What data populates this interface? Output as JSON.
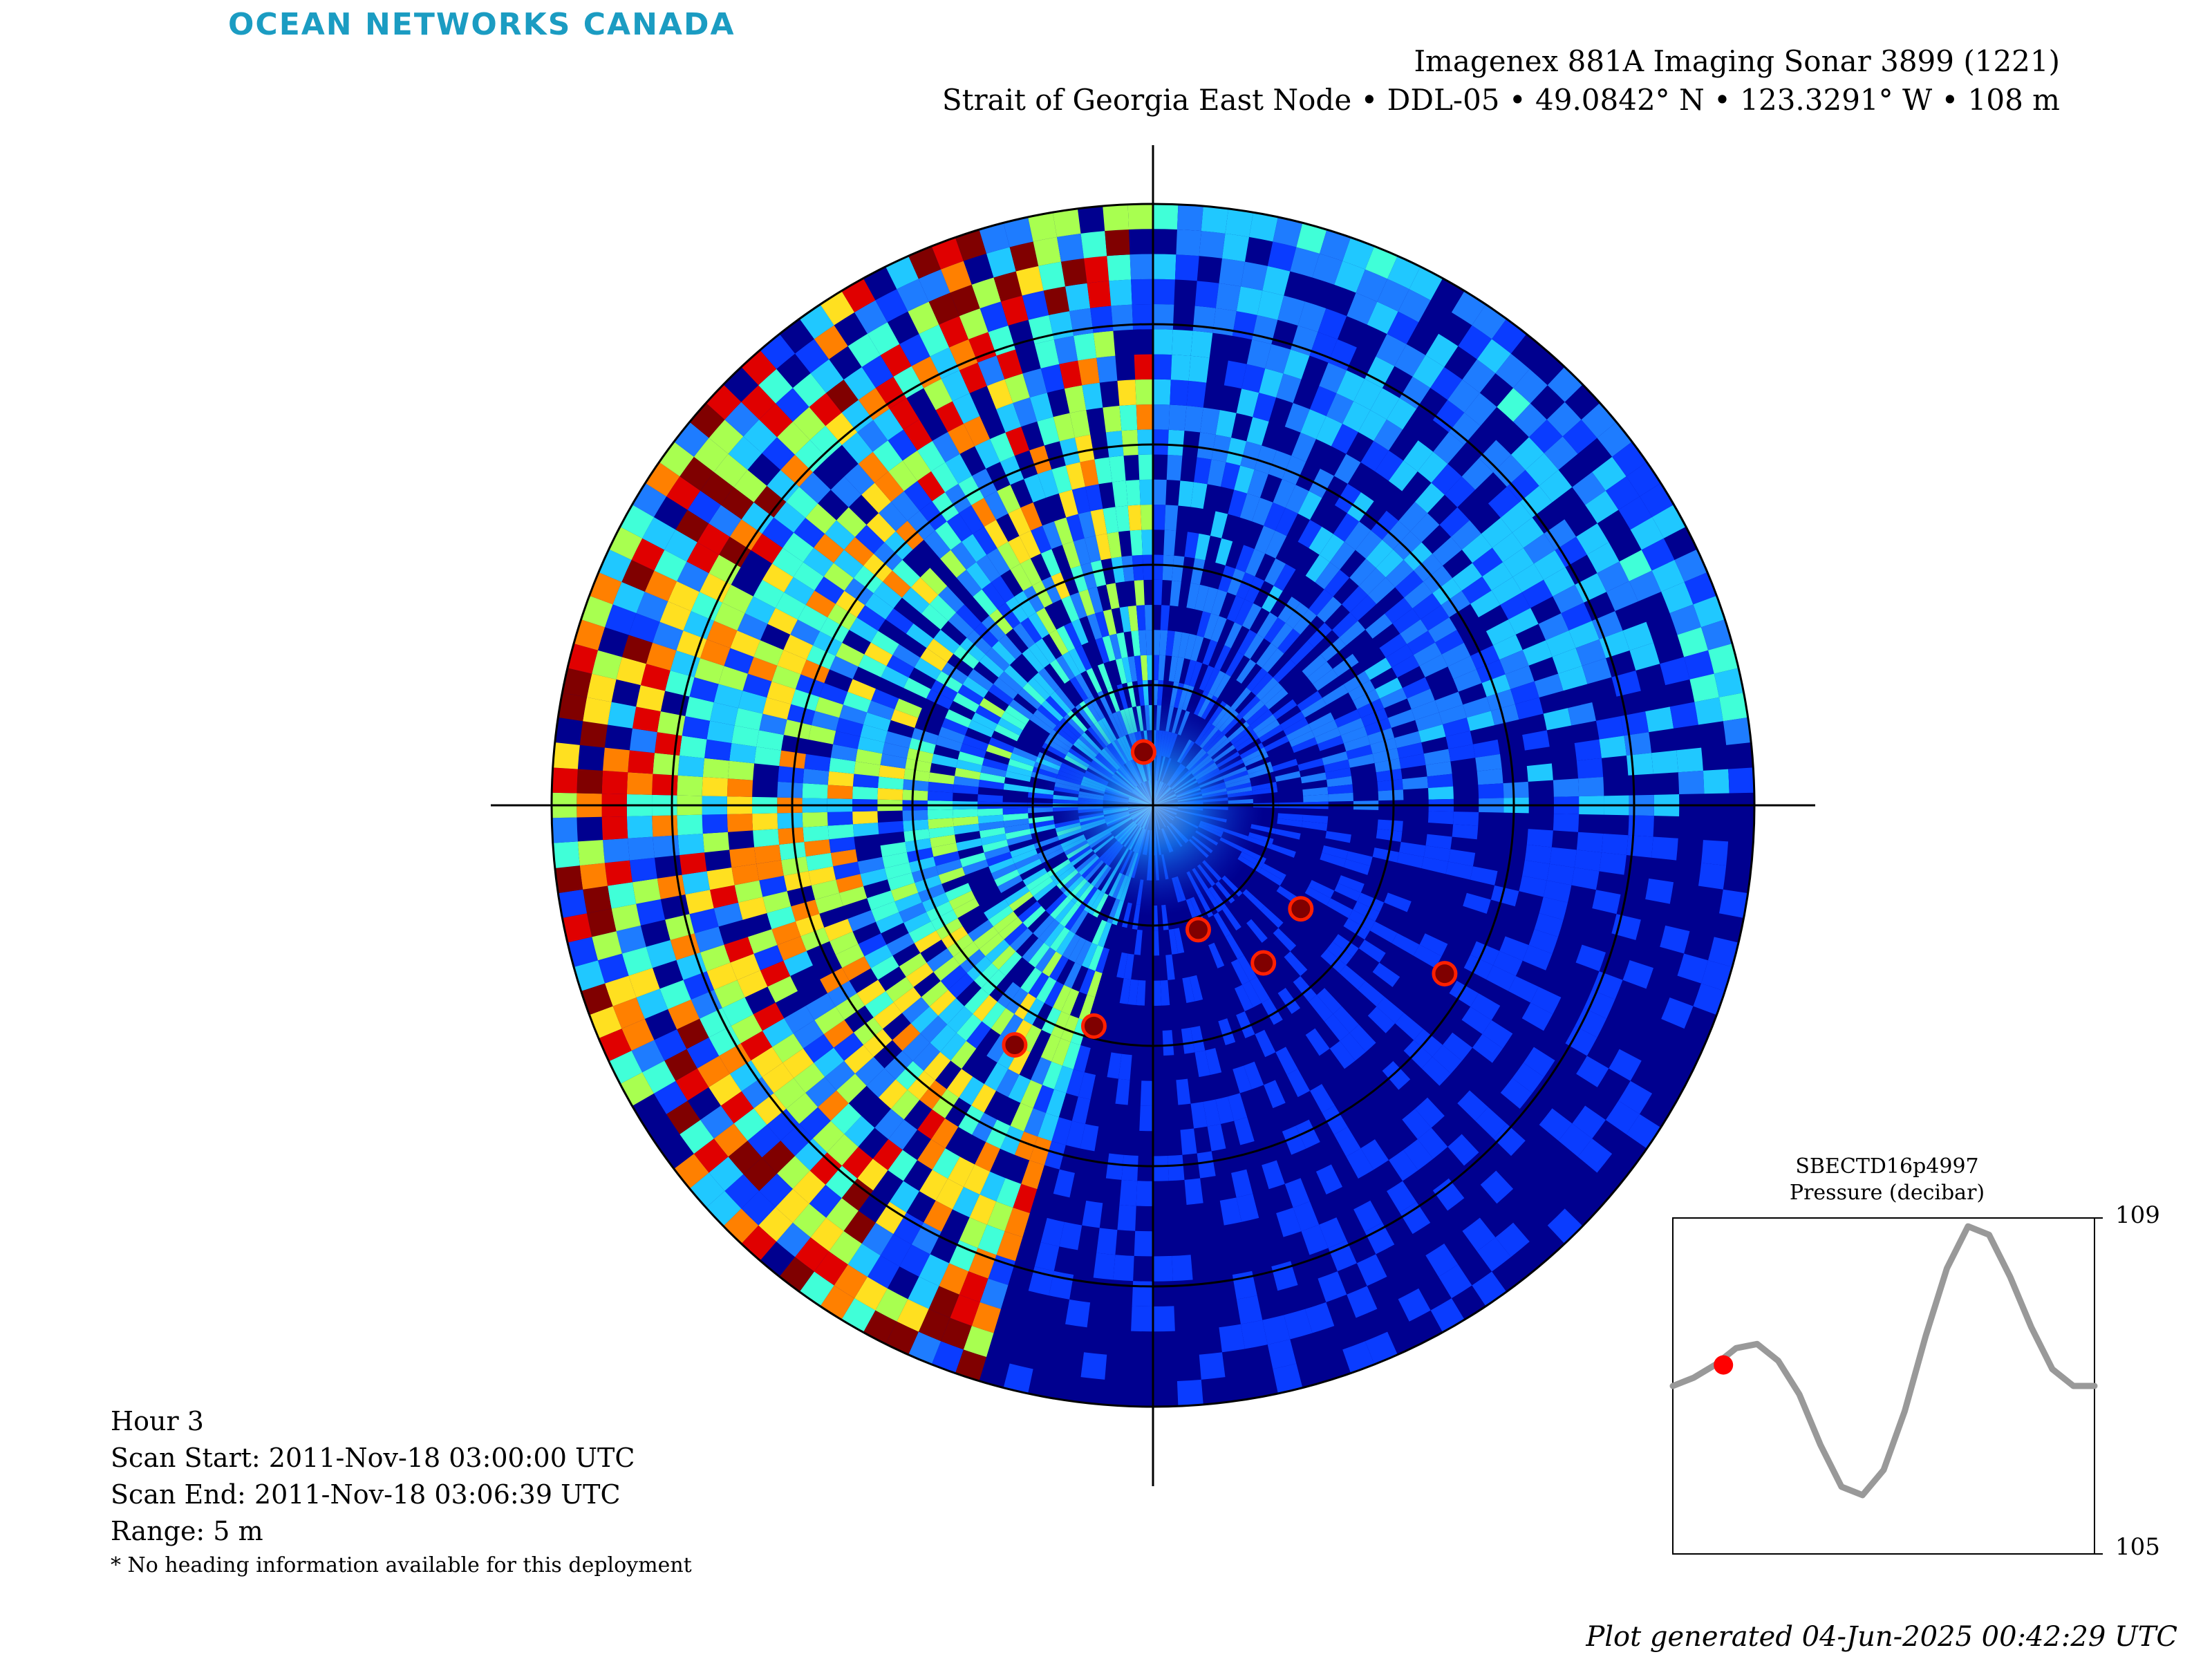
{
  "brand": "OCEAN NETWORKS CANADA",
  "title": {
    "line1": "Imagenex 881A Imaging Sonar 3899 (1221)",
    "line2": "Strait of Georgia East Node • DDL-05 • 49.0842° N • 123.3291° W • 108 m"
  },
  "info": {
    "hour": "Hour 3",
    "scan_start": "Scan Start: 2011-Nov-18 03:00:00 UTC",
    "scan_end": "Scan End: 2011-Nov-18 03:06:39 UTC",
    "range": "Range: 5 m",
    "note": "* No heading information available for this deployment"
  },
  "footer": "Plot generated 04-Jun-2025 00:42:29 UTC",
  "colors": {
    "brand": "#1b9cc2",
    "sonar_background": "#00008f",
    "pressure_line": "#999999",
    "current_marker": "#ff0000"
  },
  "chart_data": [
    {
      "type": "heatmap",
      "description_kind": "polar sonar intensity scan",
      "colormap": "jet",
      "range_m": 5,
      "range_rings": 5,
      "crosshair": true,
      "strong_returns": [
        {
          "bearing_deg": 160,
          "range_m": 1.1
        },
        {
          "bearing_deg": 145,
          "range_m": 1.6
        },
        {
          "bearing_deg": 125,
          "range_m": 1.5
        },
        {
          "bearing_deg": 210,
          "range_m": 2.3
        },
        {
          "bearing_deg": 195,
          "range_m": 1.9
        },
        {
          "bearing_deg": 120,
          "range_m": 2.8
        },
        {
          "bearing_deg": 350,
          "range_m": 0.45
        }
      ]
    },
    {
      "type": "line",
      "title": "SBECTD16p4997",
      "ylabel": "Pressure (decibar)",
      "ylim": [
        105,
        109
      ],
      "yticks": [
        109,
        105
      ],
      "x": [
        0,
        0.05,
        0.1,
        0.15,
        0.2,
        0.25,
        0.3,
        0.35,
        0.4,
        0.45,
        0.5,
        0.55,
        0.6,
        0.65,
        0.7,
        0.75,
        0.8,
        0.85,
        0.9,
        0.95,
        1.0
      ],
      "series": [
        {
          "values": [
            107.0,
            107.1,
            107.25,
            107.45,
            107.5,
            107.3,
            106.9,
            106.3,
            105.8,
            105.7,
            106.0,
            106.7,
            107.6,
            108.4,
            108.9,
            108.8,
            108.3,
            107.7,
            107.2,
            107.0,
            107.0
          ]
        }
      ],
      "marker": {
        "x": 0.12,
        "y": 107.25
      }
    }
  ]
}
